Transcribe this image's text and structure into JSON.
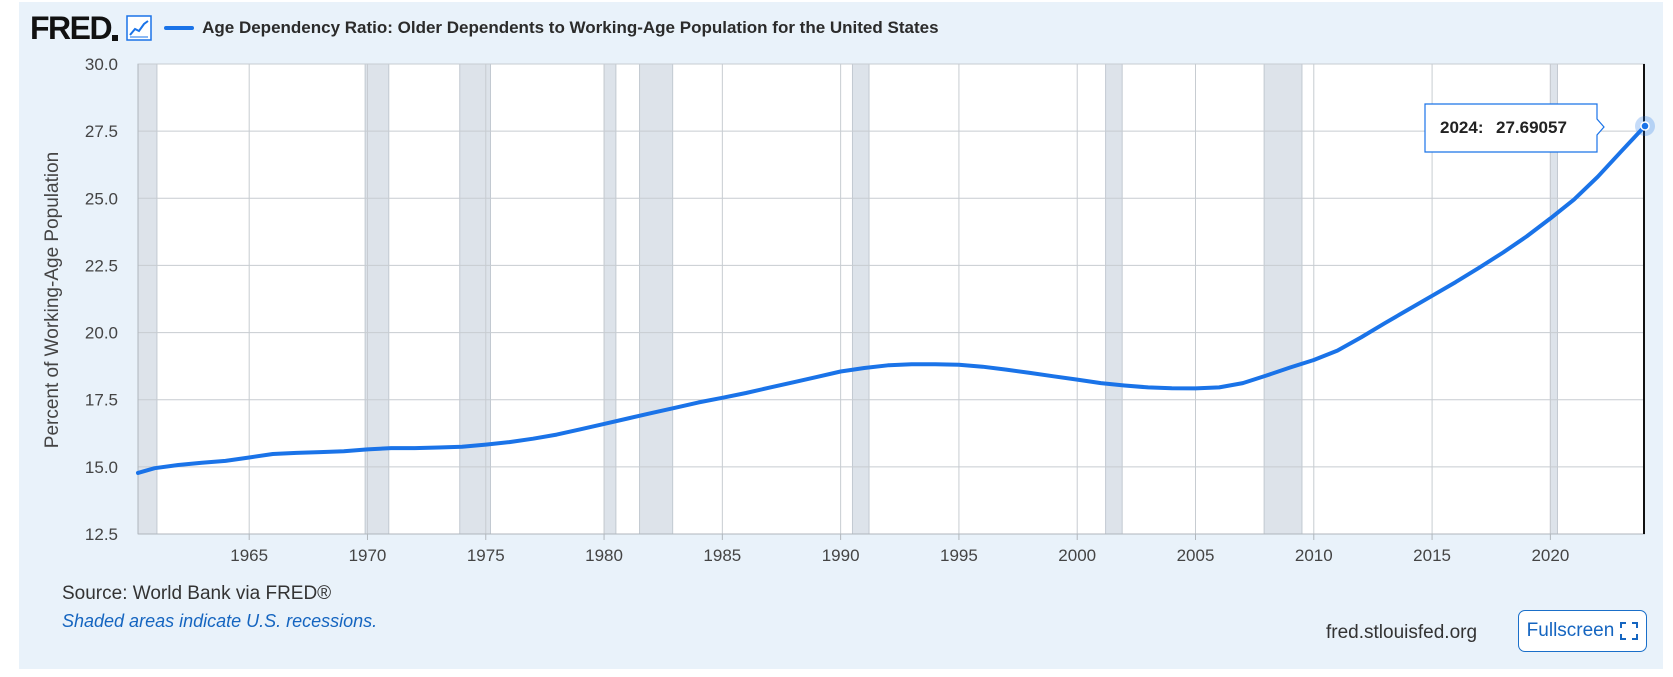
{
  "header": {
    "logo_text": "FRED",
    "title": "Age Dependency Ratio: Older Dependents to Working-Age Population for the United States"
  },
  "footer": {
    "source": "Source: World Bank via FRED®",
    "recession_note": "Shaded areas indicate U.S. recessions.",
    "site": "fred.stlouisfed.org",
    "fullscreen_label": "Fullscreen"
  },
  "colors": {
    "series": "#1a73e8",
    "recession": "#dde3ea",
    "background": "#e9f2fa",
    "plot_background": "#ffffff"
  },
  "icons": [
    "graph-icon",
    "fullscreen-icon"
  ],
  "chart_data": {
    "type": "line",
    "title": "Age Dependency Ratio: Older Dependents to Working-Age Population for the United States",
    "ylabel": "Percent of Working-Age Population",
    "xlabel": "",
    "xlim": [
      1960.3,
      2024
    ],
    "ylim": [
      12.5,
      30.0
    ],
    "yticks": [
      "12.5",
      "15.0",
      "17.5",
      "20.0",
      "22.5",
      "25.0",
      "27.5",
      "30.0"
    ],
    "xticks": [
      "1965",
      "1970",
      "1975",
      "1980",
      "1985",
      "1990",
      "1995",
      "2000",
      "2005",
      "2010",
      "2015",
      "2020"
    ],
    "grid": true,
    "recessions": [
      [
        1960.3,
        1961.1
      ],
      [
        1969.9,
        1970.9
      ],
      [
        1973.9,
        1975.2
      ],
      [
        1980.0,
        1980.5
      ],
      [
        1981.5,
        1982.9
      ],
      [
        1990.5,
        1991.2
      ],
      [
        2001.2,
        2001.9
      ],
      [
        2007.9,
        2009.5
      ],
      [
        2020.0,
        2020.3
      ]
    ],
    "x": [
      1960,
      1961,
      1962,
      1963,
      1964,
      1965,
      1966,
      1967,
      1968,
      1969,
      1970,
      1971,
      1972,
      1973,
      1974,
      1975,
      1976,
      1977,
      1978,
      1979,
      1980,
      1981,
      1982,
      1983,
      1984,
      1985,
      1986,
      1987,
      1988,
      1989,
      1990,
      1991,
      1992,
      1993,
      1994,
      1995,
      1996,
      1997,
      1998,
      1999,
      2000,
      2001,
      2002,
      2003,
      2004,
      2005,
      2006,
      2007,
      2008,
      2009,
      2010,
      2011,
      2012,
      2013,
      2014,
      2015,
      2016,
      2017,
      2018,
      2019,
      2020,
      2021,
      2022,
      2023,
      2024
    ],
    "series": [
      {
        "values": [
          14.7,
          14.95,
          15.07,
          15.15,
          15.22,
          15.35,
          15.48,
          15.52,
          15.55,
          15.58,
          15.65,
          15.7,
          15.7,
          15.72,
          15.75,
          15.83,
          15.92,
          16.05,
          16.2,
          16.4,
          16.6,
          16.8,
          17.0,
          17.2,
          17.4,
          17.57,
          17.75,
          17.95,
          18.15,
          18.35,
          18.55,
          18.68,
          18.78,
          18.82,
          18.82,
          18.8,
          18.73,
          18.62,
          18.5,
          18.37,
          18.25,
          18.12,
          18.03,
          17.96,
          17.93,
          17.92,
          17.96,
          18.12,
          18.4,
          18.7,
          18.98,
          19.33,
          19.82,
          20.35,
          20.86,
          21.37,
          21.88,
          22.42,
          22.98,
          23.58,
          24.25,
          24.95,
          25.8,
          26.75,
          27.69057
        ]
      }
    ],
    "highlight": {
      "x": 2024,
      "label": "2024:",
      "value": "27.69057"
    }
  }
}
